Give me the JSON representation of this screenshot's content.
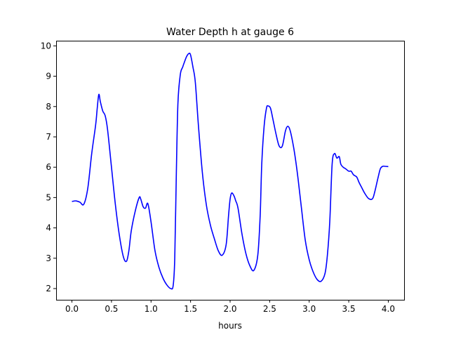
{
  "chart_data": {
    "type": "line",
    "title": "Water Depth h at gauge 6",
    "xlabel": "hours",
    "ylabel": "",
    "xlim": [
      -0.2,
      4.2
    ],
    "ylim": [
      1.63,
      10.17
    ],
    "xticks": [
      0.0,
      0.5,
      1.0,
      1.5,
      2.0,
      2.5,
      3.0,
      3.5,
      4.0
    ],
    "xtick_labels": [
      "0.0",
      "0.5",
      "1.0",
      "1.5",
      "2.0",
      "2.5",
      "3.0",
      "3.5",
      "4.0"
    ],
    "yticks": [
      2,
      3,
      4,
      5,
      6,
      7,
      8,
      9,
      10
    ],
    "ytick_labels": [
      "2",
      "3",
      "4",
      "5",
      "6",
      "7",
      "8",
      "9",
      "10"
    ],
    "grid": false,
    "legend": "none",
    "series": [
      {
        "color": "#0000ff",
        "x": [
          0.0,
          0.05,
          0.1,
          0.15,
          0.2,
          0.25,
          0.3,
          0.32,
          0.34,
          0.36,
          0.39,
          0.42,
          0.45,
          0.5,
          0.55,
          0.6,
          0.65,
          0.69,
          0.72,
          0.75,
          0.8,
          0.85,
          0.87,
          0.9,
          0.93,
          0.96,
          1.0,
          1.05,
          1.1,
          1.15,
          1.2,
          1.25,
          1.28,
          1.3,
          1.32,
          1.34,
          1.37,
          1.4,
          1.42,
          1.45,
          1.48,
          1.5,
          1.53,
          1.56,
          1.6,
          1.65,
          1.7,
          1.75,
          1.8,
          1.85,
          1.9,
          1.95,
          1.98,
          2.0,
          2.02,
          2.05,
          2.07,
          2.1,
          2.15,
          2.2,
          2.25,
          2.3,
          2.35,
          2.38,
          2.4,
          2.43,
          2.46,
          2.48,
          2.51,
          2.54,
          2.58,
          2.62,
          2.66,
          2.7,
          2.73,
          2.76,
          2.8,
          2.83,
          2.86,
          2.9,
          2.95,
          3.0,
          3.05,
          3.1,
          3.15,
          3.2,
          3.23,
          3.26,
          3.29,
          3.32,
          3.35,
          3.38,
          3.4,
          3.43,
          3.46,
          3.5,
          3.53,
          3.56,
          3.6,
          3.63,
          3.66,
          3.7,
          3.75,
          3.8,
          3.83,
          3.87,
          3.9,
          3.93,
          3.96,
          4.0
        ],
        "y": [
          4.87,
          4.89,
          4.85,
          4.78,
          5.3,
          6.45,
          7.4,
          7.95,
          8.4,
          8.15,
          7.85,
          7.7,
          7.25,
          6.0,
          4.75,
          3.75,
          3.05,
          2.9,
          3.25,
          3.9,
          4.55,
          5.0,
          4.95,
          4.7,
          4.65,
          4.8,
          4.2,
          3.25,
          2.7,
          2.35,
          2.12,
          2.0,
          2.1,
          3.0,
          5.8,
          8.1,
          9.05,
          9.3,
          9.45,
          9.65,
          9.75,
          9.7,
          9.3,
          8.8,
          7.35,
          5.8,
          4.75,
          4.1,
          3.65,
          3.25,
          3.1,
          3.45,
          4.4,
          4.95,
          5.15,
          5.05,
          4.9,
          4.65,
          3.8,
          3.15,
          2.75,
          2.6,
          3.1,
          4.4,
          6.1,
          7.35,
          7.95,
          8.02,
          7.95,
          7.6,
          7.1,
          6.7,
          6.7,
          7.2,
          7.35,
          7.2,
          6.7,
          6.2,
          5.6,
          4.7,
          3.6,
          2.95,
          2.55,
          2.3,
          2.24,
          2.5,
          3.1,
          4.2,
          6.1,
          6.45,
          6.3,
          6.35,
          6.1,
          6.0,
          5.95,
          5.87,
          5.87,
          5.75,
          5.68,
          5.5,
          5.35,
          5.15,
          4.97,
          4.96,
          5.2,
          5.65,
          5.95,
          6.03,
          6.03,
          6.02
        ]
      }
    ]
  }
}
